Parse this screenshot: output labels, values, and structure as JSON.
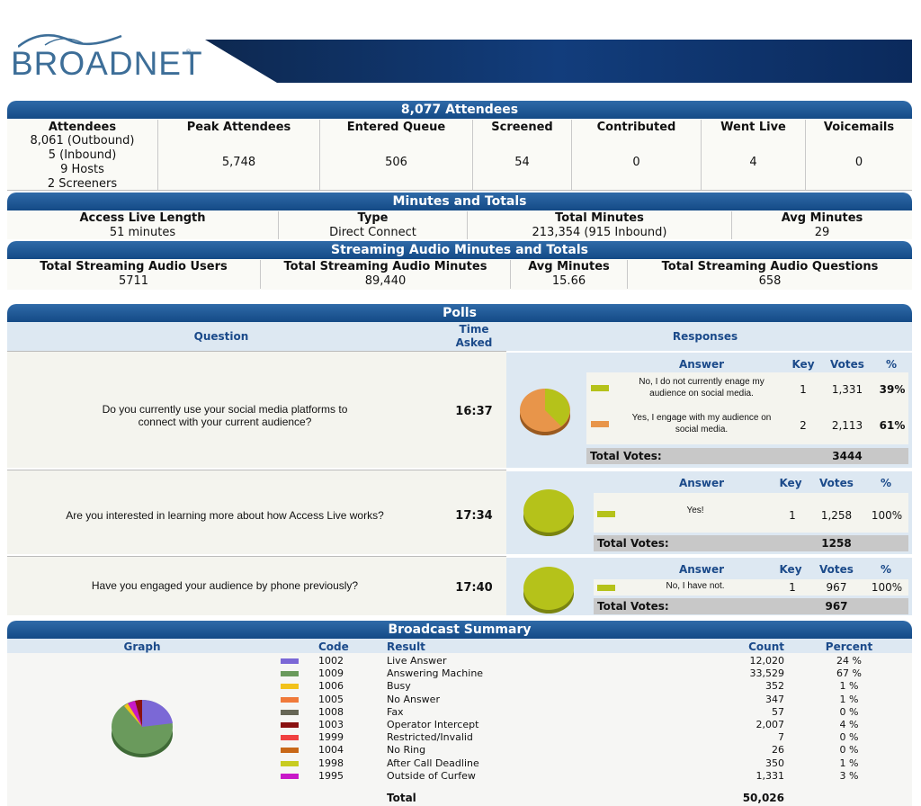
{
  "brand": "BROADNET",
  "attendees": {
    "title": "8,077 Attendees",
    "headers": [
      "Attendees",
      "Peak Attendees",
      "Entered Queue",
      "Screened",
      "Contributed",
      "Went Live",
      "Voicemails"
    ],
    "breakdown": [
      "8,061 (Outbound)",
      "5 (Inbound)",
      "9 Hosts",
      "2 Screeners"
    ],
    "values": [
      "5,748",
      "506",
      "54",
      "0",
      "4",
      "0"
    ]
  },
  "minutes": {
    "title": "Minutes and Totals",
    "headers": [
      "Access Live Length",
      "Type",
      "Total Minutes",
      "Avg Minutes"
    ],
    "values": [
      "51 minutes",
      "Direct Connect",
      "213,354 (915 Inbound)",
      "29"
    ]
  },
  "streaming": {
    "title": "Streaming Audio Minutes and Totals",
    "headers": [
      "Total Streaming Audio Users",
      "Total Streaming Audio Minutes",
      "Avg Minutes",
      "Total Streaming Audio Questions"
    ],
    "values": [
      "5711",
      "89,440",
      "15.66",
      "658"
    ]
  },
  "polls": {
    "title": "Polls",
    "col_question": "Question",
    "col_time": "Time Asked",
    "col_responses": "Responses",
    "answer_label": "Answer",
    "key_label": "Key",
    "votes_label": "Votes",
    "pct_label": "%",
    "total_label": "Total Votes:",
    "items": [
      {
        "question": "Do you currently use your social media platforms to connect with your current audience?",
        "time": "16:37",
        "total": "3444",
        "answers": [
          {
            "text": "No, I do not currently enage my audience on social media.",
            "key": "1",
            "votes": "1,331",
            "pct": "39%",
            "color": "#b5c21a"
          },
          {
            "text": "Yes, I engage with my audience on social media.",
            "key": "2",
            "votes": "2,113",
            "pct": "61%",
            "color": "#e8954a"
          }
        ]
      },
      {
        "question": "Are you interested in learning more about how Access Live works?",
        "time": "17:34",
        "total": "1258",
        "answers": [
          {
            "text": "Yes!",
            "key": "1",
            "votes": "1,258",
            "pct": "100%",
            "color": "#b5c21a"
          }
        ]
      },
      {
        "question": "Have you engaged your audience by phone previously?",
        "time": "17:40",
        "total": "967",
        "answers": [
          {
            "text": "No, I have not.",
            "key": "1",
            "votes": "967",
            "pct": "100%",
            "color": "#b5c21a"
          }
        ]
      }
    ]
  },
  "broadcast": {
    "title": "Broadcast Summary",
    "headers": [
      "Graph",
      "Code",
      "Result",
      "Count",
      "Percent"
    ],
    "rows": [
      {
        "code": "1002",
        "result": "Live Answer",
        "count": "12,020",
        "pct": "24 %",
        "color": "#7b68d6"
      },
      {
        "code": "1009",
        "result": "Answering Machine",
        "count": "33,529",
        "pct": "67 %",
        "color": "#6a9a5c"
      },
      {
        "code": "1006",
        "result": "Busy",
        "count": "352",
        "pct": "1 %",
        "color": "#f2c21a"
      },
      {
        "code": "1005",
        "result": "No Answer",
        "count": "347",
        "pct": "1 %",
        "color": "#f07a3a"
      },
      {
        "code": "1008",
        "result": "Fax",
        "count": "57",
        "pct": "0 %",
        "color": "#666655"
      },
      {
        "code": "1003",
        "result": "Operator Intercept",
        "count": "2,007",
        "pct": "4 %",
        "color": "#8a1010"
      },
      {
        "code": "1999",
        "result": "Restricted/Invalid",
        "count": "7",
        "pct": "0 %",
        "color": "#f04040"
      },
      {
        "code": "1004",
        "result": "No Ring",
        "count": "26",
        "pct": "0 %",
        "color": "#c86818"
      },
      {
        "code": "1998",
        "result": "After Call Deadline",
        "count": "350",
        "pct": "1 %",
        "color": "#c8cc20"
      },
      {
        "code": "1995",
        "result": "Outside of Curfew",
        "count": "1,331",
        "pct": "3 %",
        "color": "#c818c8"
      }
    ],
    "total_label": "Total",
    "total_count": "50,026"
  }
}
